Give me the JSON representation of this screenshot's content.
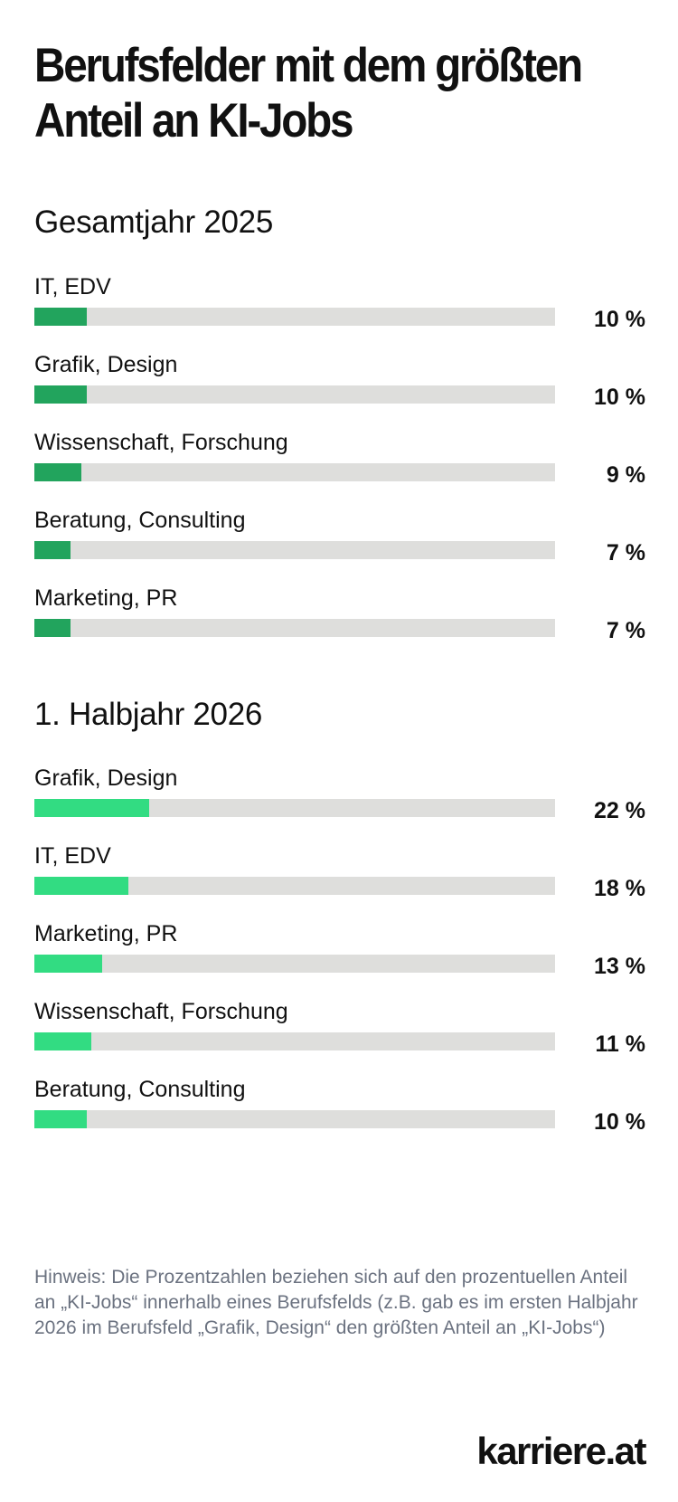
{
  "title": "Berufsfelder mit dem größten Anteil an KI-Jobs",
  "colors": {
    "track": "#dededc",
    "series_2025": "#22a45d",
    "series_2026": "#32dc82"
  },
  "chart_data": [
    {
      "type": "bar",
      "orientation": "horizontal",
      "title": "Gesamtjahr 2025",
      "categories": [
        "IT, EDV",
        "Grafik, Design",
        "Wissenschaft, Forschung",
        "Beratung, Consulting",
        "Marketing, PR"
      ],
      "values": [
        10,
        10,
        9,
        7,
        7
      ],
      "labels": [
        "10 %",
        "10 %",
        "9 %",
        "7 %",
        "7 %"
      ],
      "unit": "%",
      "xlim": [
        0,
        100
      ],
      "grid": false,
      "legend": "none"
    },
    {
      "type": "bar",
      "orientation": "horizontal",
      "title": "1. Halbjahr 2026",
      "categories": [
        "Grafik, Design",
        "IT, EDV",
        "Marketing, PR",
        "Wissenschaft, Forschung",
        "Beratung, Consulting"
      ],
      "values": [
        22,
        18,
        13,
        11,
        10
      ],
      "labels": [
        "22 %",
        "18 %",
        "13 %",
        "11 %",
        "10 %"
      ],
      "unit": "%",
      "xlim": [
        0,
        100
      ],
      "grid": false,
      "legend": "none"
    }
  ],
  "note": "Hinweis: Die Prozentzahlen beziehen sich auf den prozentuel­len Anteil an „KI-Jobs“ innerhalb eines Berufsfelds (z.B. gab es im ersten Halbjahr 2026 im Berufsfeld „Grafik, Design“ den größten Anteil an „KI-Jobs“)",
  "logo_text": "karriere.at"
}
